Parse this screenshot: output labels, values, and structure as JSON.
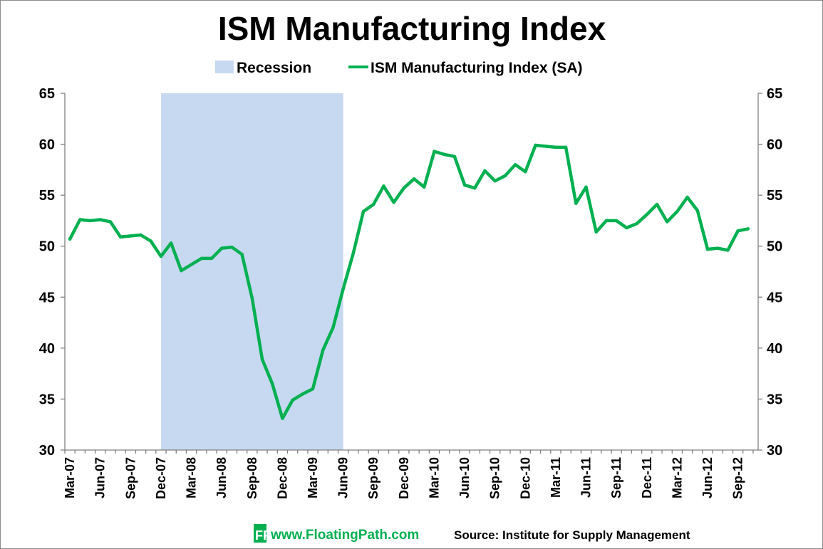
{
  "chart_data": {
    "type": "line",
    "title": "ISM Manufacturing Index",
    "legend": {
      "placement": "top-center",
      "entries": [
        "Recession",
        "ISM Manufacturing Index (SA)"
      ]
    },
    "colors": {
      "line": "#00b050",
      "recession": "#c6d9f1",
      "axis": "#7f7f7f",
      "brand_green": "#00b050"
    },
    "ylim": [
      30,
      65
    ],
    "yticks": [
      30,
      35,
      40,
      45,
      50,
      55,
      60,
      65
    ],
    "ytick_labels": [
      "30",
      "35",
      "40",
      "45",
      "50",
      "55",
      "60",
      "65"
    ],
    "start_month": "Mar-07",
    "xtick_labels": [
      {
        "index": 0,
        "label": "Mar-07"
      },
      {
        "index": 3,
        "label": "Jun-07"
      },
      {
        "index": 6,
        "label": "Sep-07"
      },
      {
        "index": 9,
        "label": "Dec-07"
      },
      {
        "index": 12,
        "label": "Mar-08"
      },
      {
        "index": 15,
        "label": "Jun-08"
      },
      {
        "index": 18,
        "label": "Sep-08"
      },
      {
        "index": 21,
        "label": "Dec-08"
      },
      {
        "index": 24,
        "label": "Mar-09"
      },
      {
        "index": 27,
        "label": "Jun-09"
      },
      {
        "index": 30,
        "label": "Sep-09"
      },
      {
        "index": 33,
        "label": "Dec-09"
      },
      {
        "index": 36,
        "label": "Mar-10"
      },
      {
        "index": 39,
        "label": "Jun-10"
      },
      {
        "index": 42,
        "label": "Sep-10"
      },
      {
        "index": 45,
        "label": "Dec-10"
      },
      {
        "index": 48,
        "label": "Mar-11"
      },
      {
        "index": 51,
        "label": "Jun-11"
      },
      {
        "index": 54,
        "label": "Sep-11"
      },
      {
        "index": 57,
        "label": "Dec-11"
      },
      {
        "index": 60,
        "label": "Mar-12"
      },
      {
        "index": 63,
        "label": "Jun-12"
      },
      {
        "index": 66,
        "label": "Sep-12"
      }
    ],
    "recession": {
      "start_month": "Dec-07",
      "end_month": "Jun-09"
    },
    "series": [
      {
        "name": "ISM Manufacturing Index (SA)",
        "values": [
          50.7,
          52.6,
          52.5,
          52.6,
          52.4,
          50.9,
          51.0,
          51.1,
          50.5,
          49.0,
          50.3,
          47.6,
          48.2,
          48.8,
          48.8,
          49.8,
          49.9,
          49.2,
          44.9,
          38.9,
          36.5,
          33.1,
          34.9,
          35.5,
          36.0,
          39.8,
          42.0,
          45.8,
          49.3,
          53.4,
          54.1,
          55.9,
          54.3,
          55.7,
          56.6,
          55.8,
          59.3,
          59.0,
          58.8,
          56.0,
          55.7,
          57.4,
          56.4,
          56.9,
          58.0,
          57.3,
          59.9,
          59.8,
          59.7,
          59.7,
          54.2,
          55.8,
          51.4,
          52.5,
          52.5,
          51.8,
          52.2,
          53.1,
          54.1,
          52.4,
          53.4,
          54.8,
          53.5,
          49.7,
          49.8,
          49.6,
          51.5,
          51.7
        ]
      }
    ]
  },
  "footer": {
    "website": "www.FloatingPath.com",
    "source": "Source: Institute for Supply Management",
    "logo_letters": "FP"
  }
}
